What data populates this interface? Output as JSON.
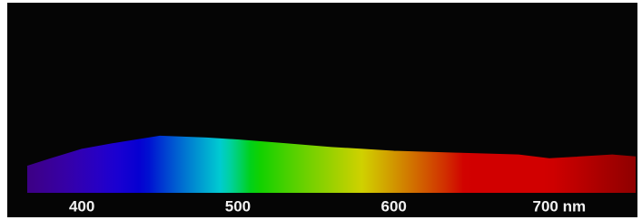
{
  "chart_data": {
    "type": "area",
    "x": [
      365,
      380,
      400,
      420,
      450,
      480,
      500,
      530,
      560,
      600,
      640,
      680,
      700,
      740,
      755
    ],
    "values": [
      14,
      18,
      23,
      26,
      30,
      29,
      28,
      26,
      24,
      22,
      21,
      20,
      18,
      20,
      19
    ],
    "xlim": [
      365,
      755
    ],
    "ylim": [
      0,
      100
    ],
    "xticks": [
      400,
      500,
      600,
      {
        "value": 700,
        "label": "700 nm"
      }
    ]
  }
}
